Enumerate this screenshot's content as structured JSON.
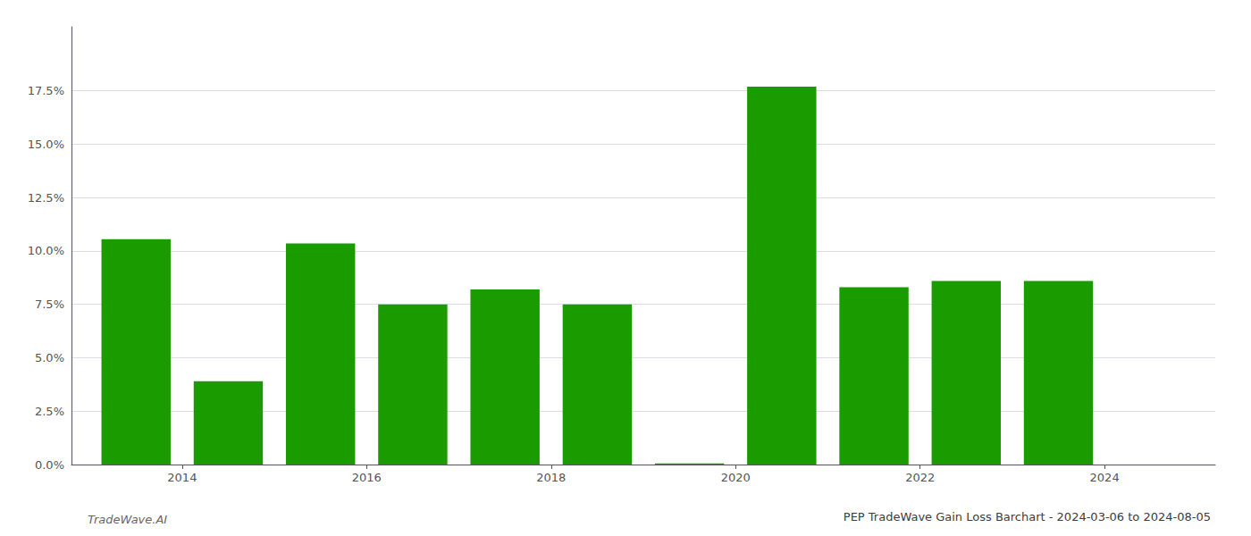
{
  "chart_data": {
    "type": "bar",
    "title": "PEP TradeWave Gain Loss Barchart - 2024-03-06 to 2024-08-05",
    "annotations": [
      "TradeWave.AI"
    ],
    "x": [
      2013,
      2014,
      2015,
      2016,
      2017,
      2018,
      2019,
      2020,
      2021,
      2022,
      2023
    ],
    "values": [
      0.1055,
      0.039,
      0.1035,
      0.075,
      0.082,
      0.075,
      0.0005,
      0.177,
      0.083,
      0.086,
      0.086
    ],
    "color": "#1a9b00",
    "xlim": [
      2012.3,
      2024.7
    ],
    "xticks": [
      {
        "value": 2013.5,
        "label": "2014"
      },
      {
        "value": 2015.5,
        "label": "2016"
      },
      {
        "value": 2017.5,
        "label": "2018"
      },
      {
        "value": 2019.5,
        "label": "2020"
      },
      {
        "value": 2021.5,
        "label": "2022"
      },
      {
        "value": 2023.5,
        "label": "2024"
      }
    ],
    "ylim": [
      0,
      0.205
    ],
    "yticks": [
      {
        "value": 0.0,
        "label": "0.0%"
      },
      {
        "value": 0.025,
        "label": "2.5%"
      },
      {
        "value": 0.05,
        "label": "5.0%"
      },
      {
        "value": 0.075,
        "label": "7.5%"
      },
      {
        "value": 0.1,
        "label": "10.0%"
      },
      {
        "value": 0.125,
        "label": "12.5%"
      },
      {
        "value": 0.15,
        "label": "15.0%"
      },
      {
        "value": 0.175,
        "label": "17.5%"
      }
    ],
    "grid": true
  }
}
